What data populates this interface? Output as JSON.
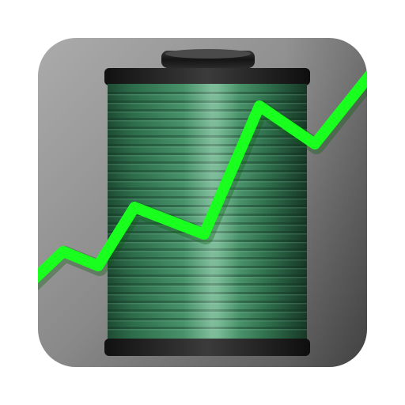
{
  "icon": {
    "name": "battery-monitor-app-icon",
    "subject": "battery-icon",
    "overlay": "trend-line-icon"
  },
  "colors": {
    "background_outer": "#ffffff",
    "tile_light": "#a3a3a3",
    "tile_dark": "#5a5a5a",
    "battery_body": "#2f7a52",
    "battery_highlight": "#7fc79a",
    "battery_cap": "#1b1b1b",
    "trend_line": "#19ff1e"
  }
}
